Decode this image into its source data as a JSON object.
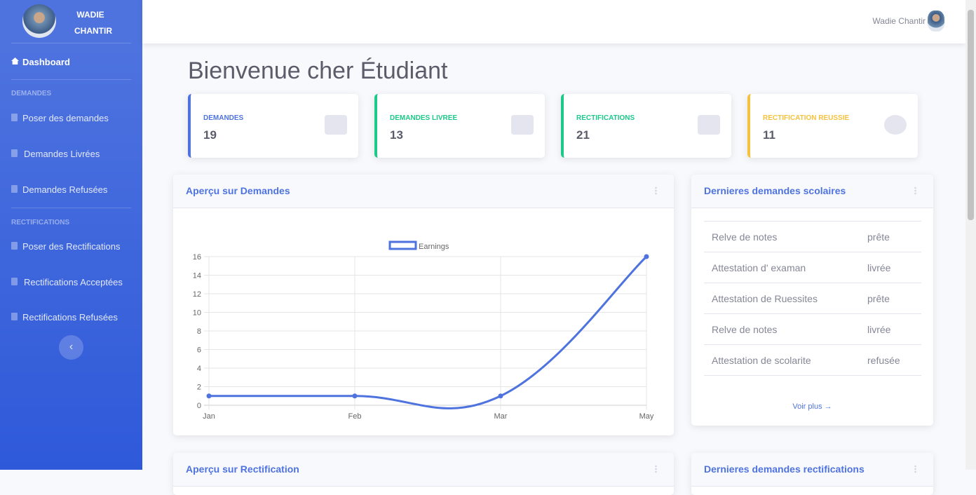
{
  "sidebar": {
    "brand_first": "WADIE",
    "brand_last": "CHANTIR",
    "dashboard": "Dashboard",
    "sections": [
      {
        "heading": "DEMANDES",
        "items": [
          "Poser des demandes",
          "Demandes Livrées",
          "Demandes Refusées"
        ]
      },
      {
        "heading": "RECTIFICATIONS",
        "items": [
          "Poser des Rectifications",
          "Rectifications Acceptées",
          "Rectifications Refusées"
        ]
      }
    ]
  },
  "topbar": {
    "user": "Wadie Chantir"
  },
  "page_title": "Bienvenue cher Étudiant",
  "cards": [
    {
      "label": "DEMANDES",
      "value": 19,
      "color": "#4e73df"
    },
    {
      "label": "DEMANDES LIVREE",
      "value": 13,
      "color": "#1cc88a"
    },
    {
      "label": "RECTIFICATIONS",
      "value": 21,
      "color": "#1cc88a"
    },
    {
      "label": "RECTIFICATION REUSSIE",
      "value": 11,
      "color": "#f6c23e"
    }
  ],
  "chart_panel": {
    "title": "Aperçu sur Demandes"
  },
  "chart_data": {
    "type": "line",
    "categories": [
      "Jan",
      "Feb",
      "Mar",
      "May"
    ],
    "series": [
      {
        "name": "Earnings",
        "color": "#4e73df",
        "values": [
          1,
          1,
          1,
          16
        ]
      }
    ],
    "ylim": [
      0,
      16
    ],
    "yticks": [
      0,
      2,
      4,
      6,
      8,
      10,
      12,
      14,
      16
    ],
    "grid": true
  },
  "recent_panel": {
    "title": "Dernieres demandes scolaires",
    "rows": [
      [
        "Relve de notes",
        "prête"
      ],
      [
        "Attestation d' examan",
        "livrée"
      ],
      [
        "Attestation de Ruessites",
        "prête"
      ],
      [
        "Relve de notes",
        "livrée"
      ],
      [
        "Attestation de scolarite",
        "refusée"
      ]
    ],
    "more": "Voir plus →"
  },
  "bottom_panels": [
    "Aperçu sur Rectification",
    "Dernieres demandes rectifications"
  ]
}
